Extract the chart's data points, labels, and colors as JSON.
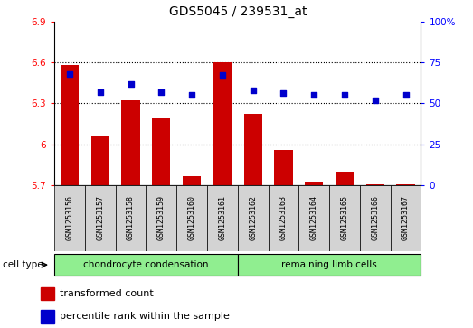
{
  "title": "GDS5045 / 239531_at",
  "samples": [
    "GSM1253156",
    "GSM1253157",
    "GSM1253158",
    "GSM1253159",
    "GSM1253160",
    "GSM1253161",
    "GSM1253162",
    "GSM1253163",
    "GSM1253164",
    "GSM1253165",
    "GSM1253166",
    "GSM1253167"
  ],
  "red_values": [
    6.58,
    6.06,
    6.32,
    6.19,
    5.77,
    6.6,
    6.22,
    5.96,
    5.73,
    5.8,
    5.71,
    5.71
  ],
  "blue_values": [
    68,
    57,
    62,
    57,
    55,
    67,
    58,
    56,
    55,
    55,
    52,
    55
  ],
  "ylim_left": [
    5.7,
    6.9
  ],
  "ylim_right": [
    0,
    100
  ],
  "yticks_left": [
    5.7,
    6.0,
    6.3,
    6.6,
    6.9
  ],
  "ytick_labels_left": [
    "5.7",
    "6",
    "6.3",
    "6.6",
    "6.9"
  ],
  "yticks_right": [
    0,
    25,
    50,
    75,
    100
  ],
  "ytick_labels_right": [
    "0",
    "25",
    "50",
    "75",
    "100%"
  ],
  "grid_values": [
    6.0,
    6.3,
    6.6
  ],
  "cell_type_label": "cell type",
  "group1_label": "chondrocyte condensation",
  "group2_label": "remaining limb cells",
  "legend_red": "transformed count",
  "legend_blue": "percentile rank within the sample",
  "bar_color": "#cc0000",
  "dot_color": "#0000cc",
  "group_color": "#90ee90",
  "bg_color": "#d3d3d3",
  "bar_bottom": 5.7,
  "bar_width": 0.6,
  "n_group1": 6,
  "n_group2": 6
}
